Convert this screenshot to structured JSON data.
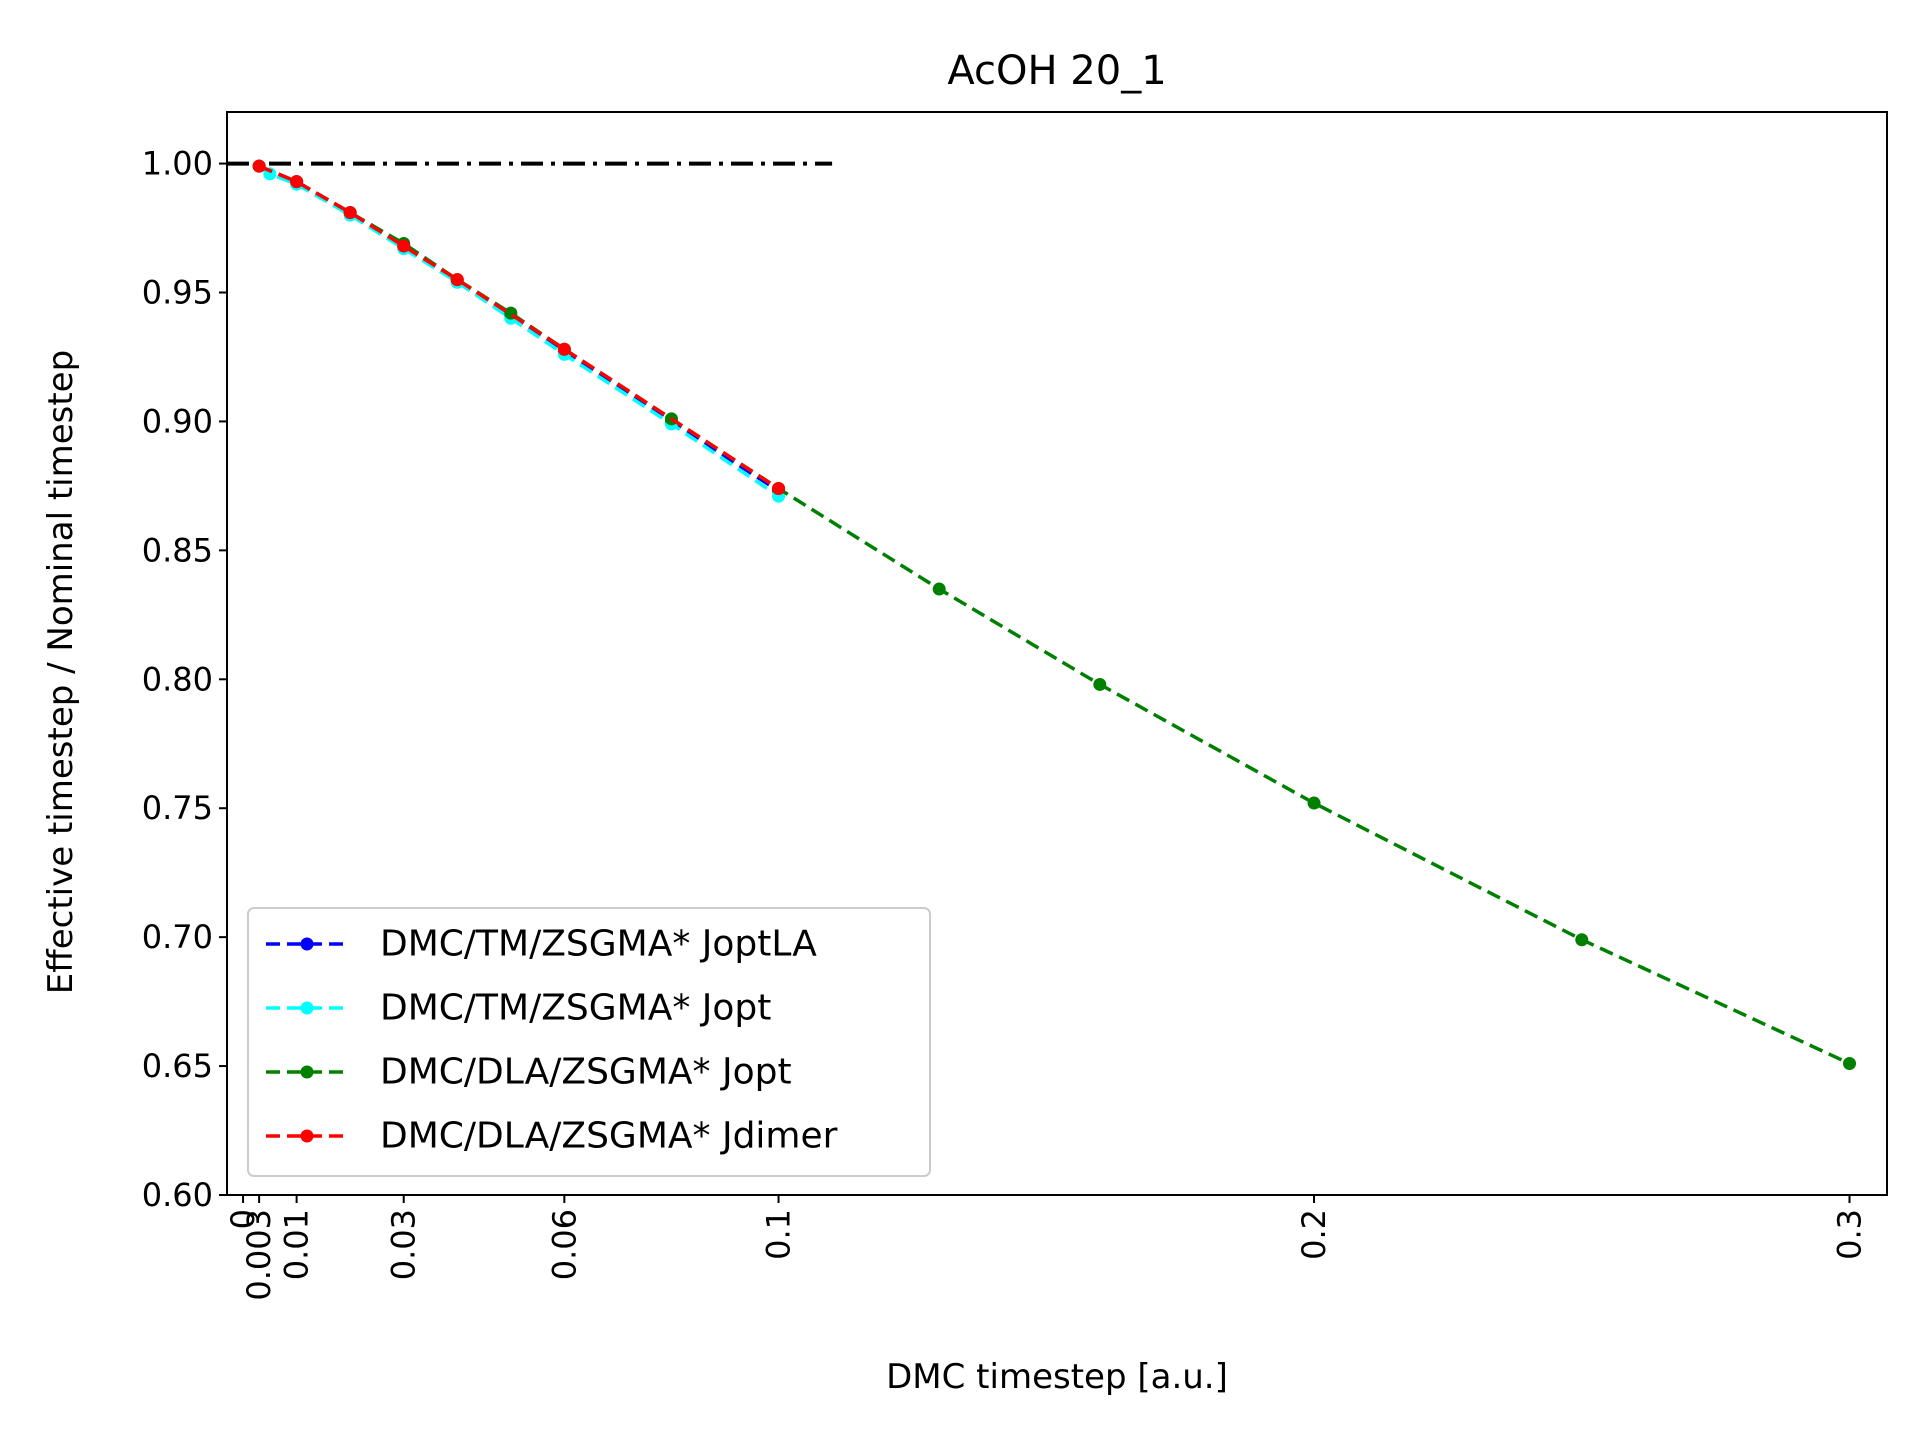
{
  "chart_data": {
    "type": "line",
    "title": "AcOH 20_1",
    "xlabel": "DMC timestep [a.u.]",
    "ylabel": "Effective timestep / Nominal timestep",
    "xlim": [
      -0.003,
      0.307
    ],
    "ylim": [
      0.6,
      1.02
    ],
    "x_ticks": [
      {
        "value": 0,
        "label": "0"
      },
      {
        "value": 0.003,
        "label": "0.003"
      },
      {
        "value": 0.01,
        "label": "0.01"
      },
      {
        "value": 0.03,
        "label": "0.03"
      },
      {
        "value": 0.06,
        "label": "0.06"
      },
      {
        "value": 0.1,
        "label": "0.1"
      },
      {
        "value": 0.2,
        "label": "0.2"
      },
      {
        "value": 0.3,
        "label": "0.3"
      }
    ],
    "y_ticks": [
      {
        "value": 0.6,
        "label": "0.60"
      },
      {
        "value": 0.65,
        "label": "0.65"
      },
      {
        "value": 0.7,
        "label": "0.70"
      },
      {
        "value": 0.75,
        "label": "0.75"
      },
      {
        "value": 0.8,
        "label": "0.80"
      },
      {
        "value": 0.85,
        "label": "0.85"
      },
      {
        "value": 0.9,
        "label": "0.90"
      },
      {
        "value": 0.95,
        "label": "0.95"
      },
      {
        "value": 1.0,
        "label": "1.00"
      }
    ],
    "grid": false,
    "legend_position": "lower-left",
    "reference_line": {
      "y": 1.0,
      "x_start": -0.003,
      "x_end": 0.11,
      "color": "#000000",
      "style": "dash-dot"
    },
    "series": [
      {
        "name": "DMC/TM/ZSGMA* JoptLA",
        "color": "#0000ff",
        "style": "dashed",
        "x": [
          0.003,
          0.01,
          0.02,
          0.03,
          0.04,
          0.05,
          0.06,
          0.08,
          0.1
        ],
        "y": [
          0.999,
          0.993,
          0.981,
          0.968,
          0.954,
          0.941,
          0.927,
          0.9,
          0.873
        ]
      },
      {
        "name": "DMC/TM/ZSGMA* Jopt",
        "color": "#00ffff",
        "style": "dashed",
        "x": [
          0.003,
          0.005,
          0.01,
          0.02,
          0.03,
          0.04,
          0.05,
          0.06,
          0.08,
          0.1
        ],
        "y": [
          0.999,
          0.996,
          0.992,
          0.98,
          0.967,
          0.954,
          0.94,
          0.926,
          0.899,
          0.871
        ]
      },
      {
        "name": "DMC/DLA/ZSGMA* Jopt",
        "color": "#008000",
        "style": "dashed",
        "x": [
          0.003,
          0.01,
          0.02,
          0.03,
          0.04,
          0.05,
          0.06,
          0.08,
          0.1,
          0.13,
          0.16,
          0.2,
          0.25,
          0.3
        ],
        "y": [
          0.999,
          0.993,
          0.981,
          0.969,
          0.955,
          0.942,
          0.928,
          0.901,
          0.874,
          0.835,
          0.798,
          0.752,
          0.699,
          0.651
        ]
      },
      {
        "name": "DMC/DLA/ZSGMA* Jdimer",
        "color": "#ff0000",
        "style": "dashed",
        "x": [
          0.003,
          0.01,
          0.02,
          0.03,
          0.04,
          0.06,
          0.1
        ],
        "y": [
          0.999,
          0.993,
          0.981,
          0.968,
          0.955,
          0.928,
          0.874
        ]
      }
    ]
  }
}
